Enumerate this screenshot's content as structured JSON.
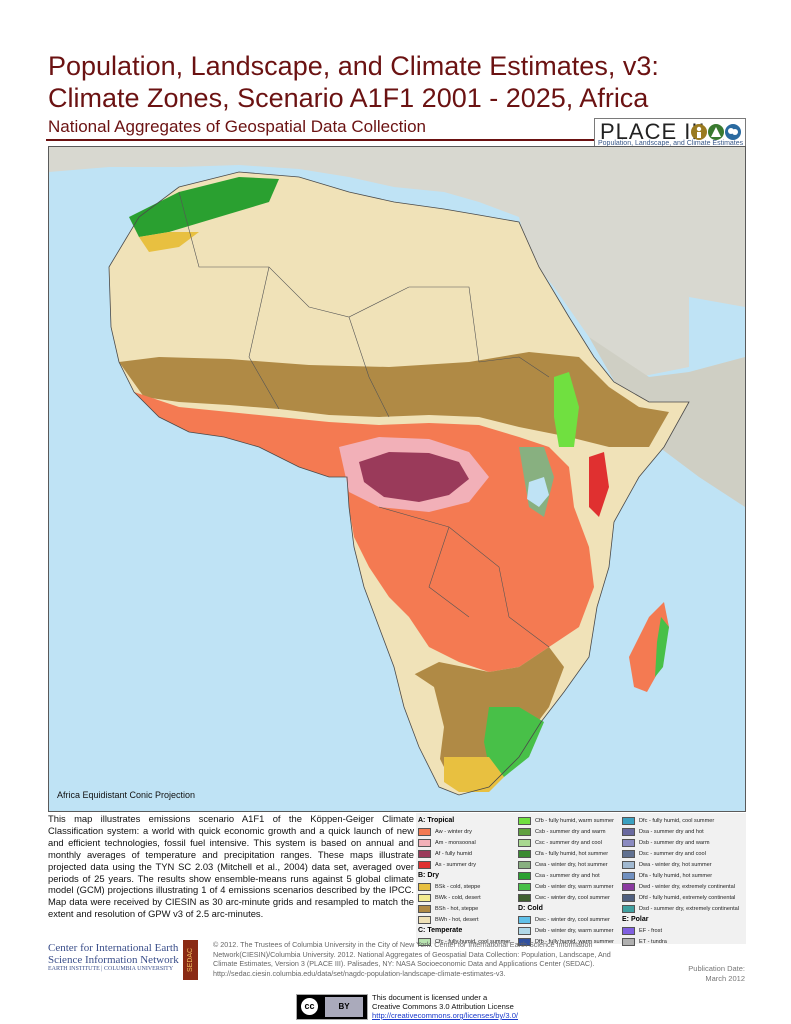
{
  "title": {
    "line1": "Population, Landscape, and Climate Estimates, v3:",
    "line2": "Climate Zones, Scenario A1F1 2001 - 2025, Africa"
  },
  "subtitle": "National Aggregates of Geospatial Data Collection",
  "logo": {
    "word": "PLACE III",
    "tagline": "Population, Landscape, and Climate Estimates"
  },
  "map": {
    "projection_label": "Africa Equidistant Conic Projection"
  },
  "description": "This map illustrates emissions scenario A1F1 of the Köppen-Geiger Climate Classification system: a world with quick economic growth and a quick launch of new and efficient technologies, fossil fuel intensive. This system is based on annual and monthly averages of temperature and precipitation ranges. These maps illustrate projected data using the TYN SC 2.03 (Mitchell et al., 2004) data set, averaged over periods of 25 years. The results show ensemble-means runs against 5 global climate model (GCM) projections illustrating 1 of 4 emissions scenarios described by the IPCC. Map data were received by CIESIN as 30 arc-minute grids and resampled to match the extent and resolution of GPW v3 of 2.5 arc-minutes.",
  "legend": {
    "columns": [
      [
        {
          "type": "head",
          "text": "A: Tropical"
        },
        {
          "text": "Aw - winter dry",
          "color": "#f47a52"
        },
        {
          "text": "Am - monsoonal",
          "color": "#f2b0b8"
        },
        {
          "text": "Af - fully humid",
          "color": "#9a3a5a"
        },
        {
          "text": "As - summer dry",
          "color": "#e03030"
        },
        {
          "type": "head",
          "text": "B: Dry"
        },
        {
          "text": "BSk - cold, steppe",
          "color": "#e8c040"
        },
        {
          "text": "BWk - cold, desert",
          "color": "#f4ec90"
        },
        {
          "text": "BSh - hot, steppe",
          "color": "#b08a45"
        },
        {
          "text": "BWh - hot, desert",
          "color": "#f0e2b8"
        },
        {
          "type": "head",
          "text": "C: Temperate"
        },
        {
          "text": "Cfc - fully humid, cool summer",
          "color": "#b8e4b0"
        }
      ],
      [
        {
          "text": "Cfb - fully humid, warm summer",
          "color": "#70e040"
        },
        {
          "text": "Csb - summer dry and warm",
          "color": "#60a040"
        },
        {
          "text": "Csc - summer dry and cool",
          "color": "#a8d890"
        },
        {
          "text": "Cfa - fully humid, hot summer",
          "color": "#3a8a30"
        },
        {
          "text": "Cwa - winter dry, hot summer",
          "color": "#88b080"
        },
        {
          "text": "Csa - summer dry and hot",
          "color": "#2aa030"
        },
        {
          "text": "Cwb - winter dry, warm summer",
          "color": "#48c048"
        },
        {
          "text": "Cwc - winter dry, cool summer",
          "color": "#406030"
        },
        {
          "type": "head",
          "text": "D: Cold"
        },
        {
          "text": "Dwc - winter dry, cool summer",
          "color": "#60c0e8"
        },
        {
          "text": "Dwb - winter dry, warm summer",
          "color": "#b0d8e8"
        },
        {
          "text": "Dfb - fully humid, warm summer",
          "color": "#3050a0"
        }
      ],
      [
        {
          "text": "Dfc - fully humid, cool summer",
          "color": "#3aa0c0"
        },
        {
          "text": "Dsa - summer dry and hot",
          "color": "#6a6aa0"
        },
        {
          "text": "Dsb - summer dry and warm",
          "color": "#8a8ac0"
        },
        {
          "text": "Dsc - summer dry and cool",
          "color": "#607090"
        },
        {
          "text": "Dwa - winter dry, hot summer",
          "color": "#a0b8d0"
        },
        {
          "text": "Dfa - fully humid, hot summer",
          "color": "#7090c0"
        },
        {
          "text": "Dwd - winter dry, extremely continental",
          "color": "#8a3aa0"
        },
        {
          "text": "Dfd - fully humid, extremely continental",
          "color": "#506080"
        },
        {
          "text": "Dsd - summer dry, extremely continental",
          "color": "#40a0a0"
        },
        {
          "type": "head",
          "text": "E: Polar"
        },
        {
          "text": "EF - frost",
          "color": "#8060e0"
        },
        {
          "text": "ET - tundra",
          "color": "#b0b0b0"
        }
      ]
    ]
  },
  "footer": {
    "ciesin_line1": "Center for International Earth",
    "ciesin_line2": "Science Information Network",
    "ciesin_line3": "EARTH INSTITUTE | COLUMBIA UNIVERSITY",
    "sedac": "SEDAC",
    "credits": "© 2012. The Trustees of Columbia University in the City of New York. Center for International Earth Science Information Network(CIESIN)/Columbia University. 2012. National Aggregates of Geospatial Data Collection: Population, Landscape, And Climate Estimates, Version 3 (PLACE III). Palisades, NY: NASA Socioeconomic Data and Applications Center (SEDAC). http://sedac.ciesin.columbia.edu/data/set/nagdc-population-landscape-climate-estimates-v3.",
    "pub_label": "Publication Date:",
    "pub_date": "March 2012",
    "license_line1": "This document is licensed under a",
    "license_line2": "Creative Commons 3.0 Attribution License",
    "license_url": "http://creativecommons.org/licenses/by/3.0/",
    "cc_text": "cc",
    "by_text": "BY"
  },
  "colors": {
    "title": "#6b1212",
    "ocean": "#bfe3f5",
    "other_land": "#d8d8d0",
    "desert": "#f0e2b8",
    "steppe": "#b08a45",
    "tropical_winter_dry": "#f47a52"
  }
}
